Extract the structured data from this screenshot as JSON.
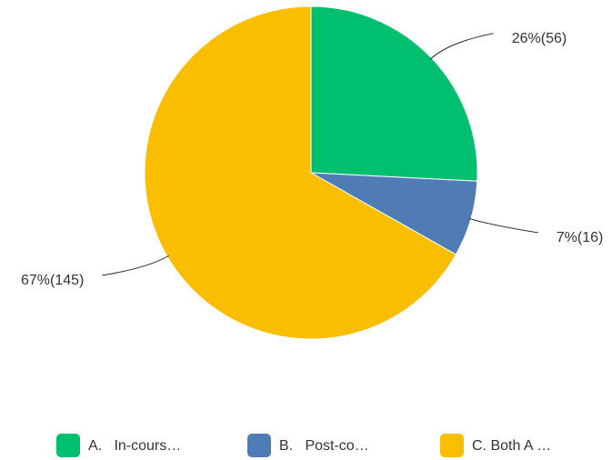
{
  "chart_data": {
    "type": "pie",
    "categories": [
      "A.   In-cours…",
      "B.   Post-co…",
      "C. Both A …"
    ],
    "values": [
      56,
      16,
      145
    ],
    "value_labels": [
      "26%(56)",
      "7%(16)",
      "67%(145)"
    ],
    "colors": [
      "#00bf6f",
      "#507cb6",
      "#f9be00"
    ],
    "legend": "bottom"
  }
}
